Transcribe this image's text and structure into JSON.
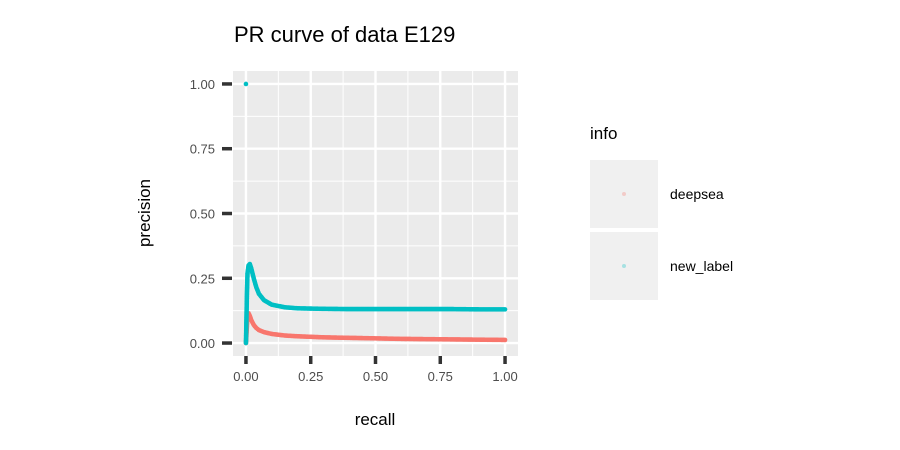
{
  "chart_data": {
    "type": "scatter",
    "title": "PR curve of data E129",
    "xlabel": "recall",
    "ylabel": "precision",
    "xlim": [
      -0.05,
      1.05
    ],
    "ylim": [
      -0.05,
      1.05
    ],
    "x_ticks": [
      "0.00",
      "0.25",
      "0.50",
      "0.75",
      "1.00"
    ],
    "y_ticks": [
      "0.00",
      "0.25",
      "0.50",
      "0.75",
      "1.00"
    ],
    "grid": true,
    "legend": {
      "title": "info",
      "placement": "right"
    },
    "series": [
      {
        "name": "deepsea",
        "color": "#F8766D",
        "points": [
          [
            0.0,
            0.0
          ],
          [
            0.003,
            0.05
          ],
          [
            0.005,
            0.09
          ],
          [
            0.008,
            0.11
          ],
          [
            0.01,
            0.115
          ],
          [
            0.015,
            0.105
          ],
          [
            0.02,
            0.09
          ],
          [
            0.03,
            0.07
          ],
          [
            0.04,
            0.058
          ],
          [
            0.05,
            0.05
          ],
          [
            0.07,
            0.042
          ],
          [
            0.1,
            0.035
          ],
          [
            0.15,
            0.029
          ],
          [
            0.2,
            0.026
          ],
          [
            0.3,
            0.022
          ],
          [
            0.4,
            0.02
          ],
          [
            0.5,
            0.018
          ],
          [
            0.6,
            0.016
          ],
          [
            0.7,
            0.015
          ],
          [
            0.8,
            0.014
          ],
          [
            0.9,
            0.013
          ],
          [
            1.0,
            0.012
          ]
        ]
      },
      {
        "name": "new_label",
        "color": "#00BFC4",
        "points": [
          [
            0.0,
            1.0
          ],
          [
            0.0,
            0.0
          ],
          [
            0.002,
            0.1
          ],
          [
            0.004,
            0.2
          ],
          [
            0.006,
            0.27
          ],
          [
            0.01,
            0.3
          ],
          [
            0.015,
            0.305
          ],
          [
            0.02,
            0.29
          ],
          [
            0.03,
            0.25
          ],
          [
            0.04,
            0.215
          ],
          [
            0.05,
            0.19
          ],
          [
            0.07,
            0.165
          ],
          [
            0.1,
            0.148
          ],
          [
            0.15,
            0.138
          ],
          [
            0.2,
            0.134
          ],
          [
            0.3,
            0.132
          ],
          [
            0.4,
            0.131
          ],
          [
            0.5,
            0.131
          ],
          [
            0.6,
            0.131
          ],
          [
            0.7,
            0.131
          ],
          [
            0.8,
            0.131
          ],
          [
            0.9,
            0.13
          ],
          [
            1.0,
            0.13
          ]
        ]
      }
    ]
  }
}
